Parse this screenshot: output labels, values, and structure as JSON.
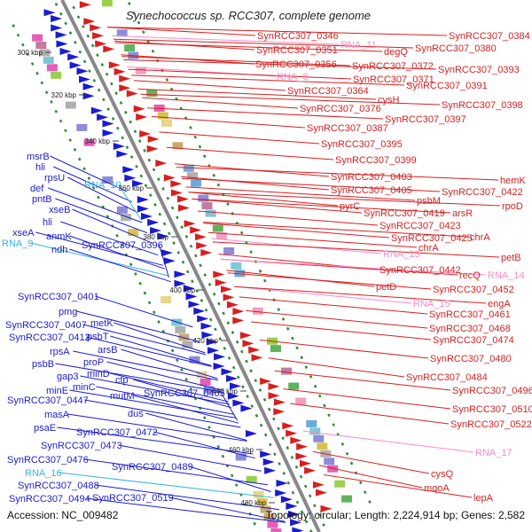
{
  "header": {
    "title": "Synechococcus sp. RCC307, complete genome"
  },
  "footer": {
    "accession": "Accession: NC_009482",
    "topology": "Topology: circular; Length: 2,224,914 bp; Genes: 2,582"
  },
  "ticks": [
    "300 kbp",
    "320 kbp",
    "340 kbp",
    "360 kbp",
    "380 kbp",
    "400 kbp",
    "420 kbp",
    "440 kbp",
    "460 kbp",
    "480 kbp"
  ],
  "colors": {
    "forward": "#d81f1f",
    "reverse": "#1b1bd0",
    "rna_fwd": "#ff88c8",
    "rna_rev": "#33b5e5",
    "backbone": "#888888",
    "ring": "#2e8b2e"
  },
  "labels_left": [
    {
      "text": "msrB",
      "type": "gene"
    },
    {
      "text": "hli",
      "type": "gene"
    },
    {
      "text": "rpsU",
      "type": "gene"
    },
    {
      "text": "def",
      "type": "gene"
    },
    {
      "text": "pntB",
      "type": "gene"
    },
    {
      "text": "RNA_10",
      "type": "rna"
    },
    {
      "text": "RNA_9",
      "type": "rna"
    },
    {
      "text": "xseB",
      "type": "gene"
    },
    {
      "text": "hli",
      "type": "gene"
    },
    {
      "text": "xseA",
      "type": "gene"
    },
    {
      "text": "anmK",
      "type": "gene"
    },
    {
      "text": "ndh",
      "type": "gene"
    },
    {
      "text": "SynRCC307_0396",
      "type": "gene"
    },
    {
      "text": "SynRCC307_0401",
      "type": "gene"
    },
    {
      "text": "pmg",
      "type": "gene"
    },
    {
      "text": "metK",
      "type": "gene"
    },
    {
      "text": "SynRCC307_0407",
      "type": "gene"
    },
    {
      "text": "psbT",
      "type": "gene"
    },
    {
      "text": "SynRCC307_0412",
      "type": "gene"
    },
    {
      "text": "rpsA",
      "type": "gene"
    },
    {
      "text": "arsB",
      "type": "gene"
    },
    {
      "text": "psbB",
      "type": "gene"
    },
    {
      "text": "proP",
      "type": "gene"
    },
    {
      "text": "gap3",
      "type": "gene"
    },
    {
      "text": "minD",
      "type": "gene"
    },
    {
      "text": "ctp",
      "type": "gene"
    },
    {
      "text": "minE",
      "type": "gene"
    },
    {
      "text": "minC",
      "type": "gene"
    },
    {
      "text": "SynRCC307_0447",
      "type": "gene"
    },
    {
      "text": "mutM",
      "type": "gene"
    },
    {
      "text": "SynRCC307_0465",
      "type": "gene"
    },
    {
      "text": "masA",
      "type": "gene"
    },
    {
      "text": "dus",
      "type": "gene"
    },
    {
      "text": "psaE",
      "type": "gene"
    },
    {
      "text": "SynRCC307_0472",
      "type": "gene"
    },
    {
      "text": "SynRCC307_0473",
      "type": "gene"
    },
    {
      "text": "SynRCC307_0476",
      "type": "gene"
    },
    {
      "text": "SynRCC307_0489",
      "type": "gene"
    },
    {
      "text": "RNA_16",
      "type": "rna"
    },
    {
      "text": "SynRCC307_0488",
      "type": "gene"
    },
    {
      "text": "SynRCC307_0494",
      "type": "gene"
    },
    {
      "text": "SynRCC307_0519",
      "type": "gene"
    }
  ],
  "labels_right": [
    {
      "text": "SynRCC307_0346",
      "type": "gene"
    },
    {
      "text": "SynRCC307_0384",
      "type": "gene"
    },
    {
      "text": "RNA_11",
      "type": "rna"
    },
    {
      "text": "degQ",
      "type": "gene"
    },
    {
      "text": "SynRCC307_0351",
      "type": "gene"
    },
    {
      "text": "SynRCC307_0380",
      "type": "gene"
    },
    {
      "text": "SynRCC307_0356",
      "type": "gene"
    },
    {
      "text": "SynRCC307_0372",
      "type": "gene"
    },
    {
      "text": "SynRCC307_0393",
      "type": "gene"
    },
    {
      "text": "RNA_8",
      "type": "rna"
    },
    {
      "text": "SynRCC307_0371",
      "type": "gene"
    },
    {
      "text": "SynRCC307_0391",
      "type": "gene"
    },
    {
      "text": "SynRCC307_0364",
      "type": "gene"
    },
    {
      "text": "cysH",
      "type": "gene"
    },
    {
      "text": "SynRCC307_0376",
      "type": "gene"
    },
    {
      "text": "SynRCC307_0398",
      "type": "gene"
    },
    {
      "text": "SynRCC307_0397",
      "type": "gene"
    },
    {
      "text": "SynRCC307_0387",
      "type": "gene"
    },
    {
      "text": "SynRCC307_0395",
      "type": "gene"
    },
    {
      "text": "SynRCC307_0399",
      "type": "gene"
    },
    {
      "text": "SynRCC307_0403",
      "type": "gene"
    },
    {
      "text": "hemK",
      "type": "gene"
    },
    {
      "text": "SynRCC307_0405",
      "type": "gene"
    },
    {
      "text": "psbM",
      "type": "gene"
    },
    {
      "text": "SynRCC307_0422",
      "type": "gene"
    },
    {
      "text": "pyrC",
      "type": "gene"
    },
    {
      "text": "SynRCC307_0419",
      "type": "gene"
    },
    {
      "text": "rpoD",
      "type": "gene"
    },
    {
      "text": "arsR",
      "type": "gene"
    },
    {
      "text": "SynRCC307_0423",
      "type": "gene"
    },
    {
      "text": "SynRCC307_0425",
      "type": "gene"
    },
    {
      "text": "chrA",
      "type": "gene"
    },
    {
      "text": "chrA",
      "type": "gene"
    },
    {
      "text": "RNA_13",
      "type": "rna"
    },
    {
      "text": "petB",
      "type": "gene"
    },
    {
      "text": "SynRCC307_0442",
      "type": "gene"
    },
    {
      "text": "recQ",
      "type": "gene"
    },
    {
      "text": "RNA_14",
      "type": "rna"
    },
    {
      "text": "petD",
      "type": "gene"
    },
    {
      "text": "SynRCC307_0452",
      "type": "gene"
    },
    {
      "text": "RNA_15",
      "type": "rna"
    },
    {
      "text": "engA",
      "type": "gene"
    },
    {
      "text": "SynRCC307_0461",
      "type": "gene"
    },
    {
      "text": "SynRCC307_0468",
      "type": "gene"
    },
    {
      "text": "SynRCC307_0474",
      "type": "gene"
    },
    {
      "text": "SynRCC307_0480",
      "type": "gene"
    },
    {
      "text": "SynRCC307_0484",
      "type": "gene"
    },
    {
      "text": "SynRCC307_0496",
      "type": "gene"
    },
    {
      "text": "SynRCC307_0510",
      "type": "gene"
    },
    {
      "text": "SynRCC307_0522",
      "type": "gene"
    },
    {
      "text": "RNA_17",
      "type": "rna"
    },
    {
      "text": "cysQ",
      "type": "gene"
    },
    {
      "text": "mqoA",
      "type": "gene"
    },
    {
      "text": "lepA",
      "type": "gene"
    }
  ]
}
